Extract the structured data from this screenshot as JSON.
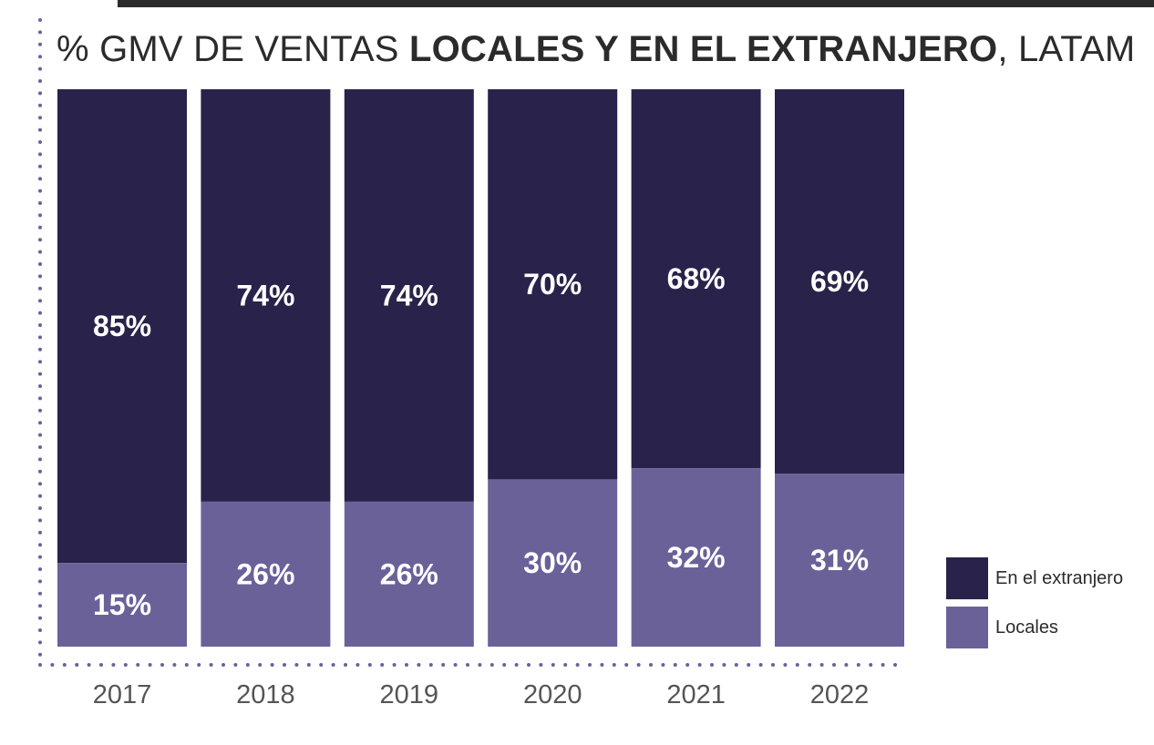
{
  "title": {
    "prefix": "% GMV DE VENTAS ",
    "bold": "LOCALES Y EN EL EXTRANJERO",
    "suffix": ", LATAM"
  },
  "colors": {
    "en_el_extranjero": "#29224a",
    "locales": "#6b6199",
    "axis_dots": "#6b6199",
    "title": "#2b2b2b"
  },
  "legend": [
    {
      "label": "En el extranjero",
      "color": "#29224a"
    },
    {
      "label": "Locales",
      "color": "#6b6199"
    }
  ],
  "chart_data": {
    "type": "bar",
    "stacked": true,
    "title": "% GMV DE VENTAS LOCALES Y EN EL EXTRANJERO, LATAM",
    "categories": [
      "2017",
      "2018",
      "2019",
      "2020",
      "2021",
      "2022"
    ],
    "series": [
      {
        "name": "Locales",
        "values": [
          15,
          26,
          26,
          30,
          32,
          31
        ],
        "labels": [
          "15%",
          "26%",
          "26%",
          "30%",
          "32%",
          "31%"
        ]
      },
      {
        "name": "En el extranjero",
        "values": [
          85,
          74,
          74,
          70,
          68,
          69
        ],
        "labels": [
          "85%",
          "74%",
          "74%",
          "70%",
          "68%",
          "69%"
        ]
      }
    ],
    "ylim": [
      0,
      100
    ],
    "grid": false,
    "legend_position": "bottom-right"
  }
}
